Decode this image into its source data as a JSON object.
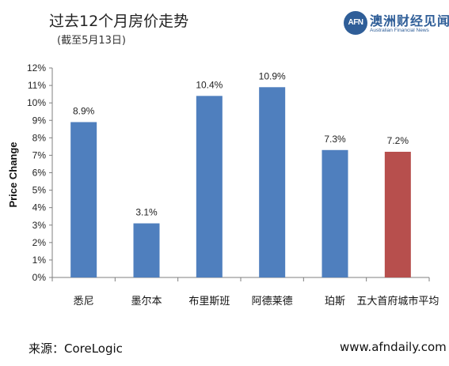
{
  "header": {
    "title": "过去12个月房价走势",
    "subtitle": "(截至5月13日)",
    "logo_mark": "AFN",
    "logo_cn": "澳洲财经见闻",
    "logo_en": "Australian Financial News"
  },
  "footer": {
    "source": "来源：CoreLogic",
    "url": "www.afndaily.com"
  },
  "colors": {
    "bar_default": "#4f7fbe",
    "bar_highlight": "#b74f4d",
    "axis": "#7f7f7f",
    "brand": "#2f5e98"
  },
  "chart_data": {
    "type": "bar",
    "title": "过去12个月房价走势",
    "subtitle": "(截至5月13日)",
    "xlabel": "",
    "ylabel": "Price Change",
    "ylim": [
      0,
      12
    ],
    "yticks": [
      "0%",
      "1%",
      "2%",
      "3%",
      "4%",
      "5%",
      "6%",
      "7%",
      "8%",
      "9%",
      "10%",
      "11%",
      "12%"
    ],
    "categories": [
      "悉尼",
      "墨尔本",
      "布里斯班",
      "阿德莱德",
      "珀斯",
      "五大首府城市平均"
    ],
    "values": [
      8.9,
      3.1,
      10.4,
      10.9,
      7.3,
      7.2
    ],
    "data_labels": [
      "8.9%",
      "3.1%",
      "10.4%",
      "10.9%",
      "7.3%",
      "7.2%"
    ],
    "highlight_index": 5,
    "grid": false,
    "legend": "none"
  }
}
